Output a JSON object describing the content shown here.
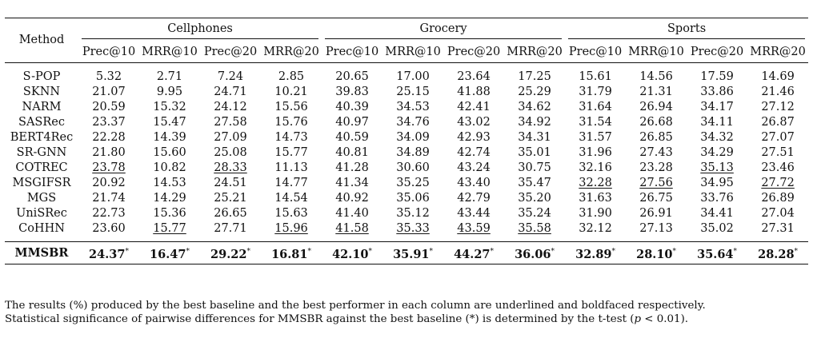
{
  "header": {
    "method_label": "Method",
    "datasets": [
      "Cellphones",
      "Grocery",
      "Sports"
    ],
    "metrics": [
      "Prec@10",
      "MRR@10",
      "Prec@20",
      "MRR@20"
    ]
  },
  "baselines": [
    {
      "method": "S-POP",
      "values": [
        "5.32",
        "2.71",
        "7.24",
        "2.85",
        "20.65",
        "17.00",
        "23.64",
        "17.25",
        "15.61",
        "14.56",
        "17.59",
        "14.69"
      ],
      "underline": []
    },
    {
      "method": "SKNN",
      "values": [
        "21.07",
        "9.95",
        "24.71",
        "10.21",
        "39.83",
        "25.15",
        "41.88",
        "25.29",
        "31.79",
        "21.31",
        "33.86",
        "21.46"
      ],
      "underline": []
    },
    {
      "method": "NARM",
      "values": [
        "20.59",
        "15.32",
        "24.12",
        "15.56",
        "40.39",
        "34.53",
        "42.41",
        "34.62",
        "31.64",
        "26.94",
        "34.17",
        "27.12"
      ],
      "underline": []
    },
    {
      "method": "SASRec",
      "values": [
        "23.37",
        "15.47",
        "27.58",
        "15.76",
        "40.97",
        "34.76",
        "43.02",
        "34.92",
        "31.54",
        "26.68",
        "34.11",
        "26.87"
      ],
      "underline": []
    },
    {
      "method": "BERT4Rec",
      "values": [
        "22.28",
        "14.39",
        "27.09",
        "14.73",
        "40.59",
        "34.09",
        "42.93",
        "34.31",
        "31.57",
        "26.85",
        "34.32",
        "27.07"
      ],
      "underline": []
    },
    {
      "method": "SR-GNN",
      "values": [
        "21.80",
        "15.60",
        "25.08",
        "15.77",
        "40.81",
        "34.89",
        "42.74",
        "35.01",
        "31.96",
        "27.43",
        "34.29",
        "27.51"
      ],
      "underline": []
    },
    {
      "method": "COTREC",
      "values": [
        "23.78",
        "10.82",
        "28.33",
        "11.13",
        "41.28",
        "30.60",
        "43.24",
        "30.75",
        "32.16",
        "23.28",
        "35.13",
        "23.46"
      ],
      "underline": [
        0,
        2,
        10
      ]
    },
    {
      "method": "MSGIFSR",
      "values": [
        "20.92",
        "14.53",
        "24.51",
        "14.77",
        "41.34",
        "35.25",
        "43.40",
        "35.47",
        "32.28",
        "27.56",
        "34.95",
        "27.72"
      ],
      "underline": [
        8,
        9,
        11
      ]
    },
    {
      "method": "MGS",
      "values": [
        "21.74",
        "14.29",
        "25.21",
        "14.54",
        "40.92",
        "35.06",
        "42.79",
        "35.20",
        "31.63",
        "26.75",
        "33.76",
        "26.89"
      ],
      "underline": []
    },
    {
      "method": "UniSRec",
      "values": [
        "22.73",
        "15.36",
        "26.65",
        "15.63",
        "41.40",
        "35.12",
        "43.44",
        "35.24",
        "31.90",
        "26.91",
        "34.41",
        "27.04"
      ],
      "underline": []
    },
    {
      "method": "CoHHN",
      "values": [
        "23.60",
        "15.77",
        "27.71",
        "15.96",
        "41.58",
        "35.33",
        "43.59",
        "35.58",
        "32.12",
        "27.13",
        "35.02",
        "27.31"
      ],
      "underline": [
        1,
        3,
        4,
        5,
        6,
        7
      ]
    }
  ],
  "ours": {
    "method": "MMSBR",
    "values": [
      "24.37",
      "16.47",
      "29.22",
      "16.81",
      "42.10",
      "35.91",
      "44.27",
      "36.06",
      "32.89",
      "28.10",
      "35.64",
      "28.28"
    ],
    "star": "*"
  },
  "notes": {
    "line1": "The results (%) produced by the best baseline and the best performer in each column are underlined and boldfaced respectively.",
    "line2_pre": "Statistical significance of pairwise differences for MMSBR against the best baseline (*) is determined by the t-test (",
    "line2_p": "p",
    "line2_post": " < 0.01)."
  }
}
